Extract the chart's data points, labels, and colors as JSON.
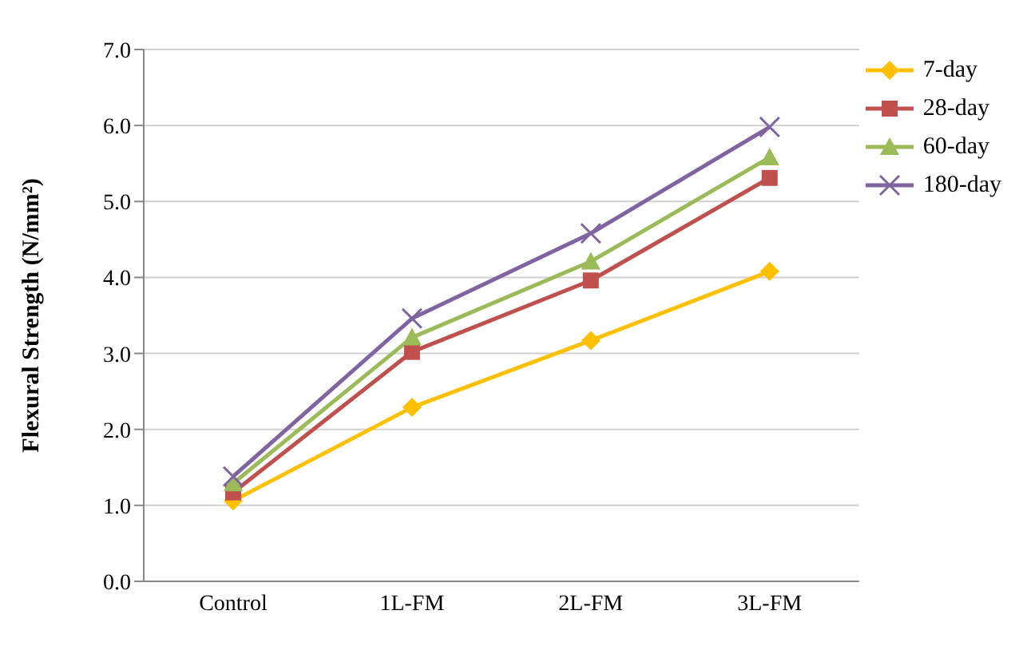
{
  "chart_data": {
    "type": "line",
    "ylabel": "Flexural Strength (N/mm²)",
    "categories": [
      "Control",
      "1L-FM",
      "2L-FM",
      "3L-FM"
    ],
    "series": [
      {
        "name": "7-day",
        "color": "#ffc000",
        "marker": "diamond",
        "values": [
          1.06,
          2.29,
          3.17,
          4.08
        ]
      },
      {
        "name": "28-day",
        "color": "#c0504d",
        "marker": "square",
        "values": [
          1.17,
          3.02,
          3.96,
          5.31
        ]
      },
      {
        "name": "60-day",
        "color": "#9bbb59",
        "marker": "triangle",
        "values": [
          1.29,
          3.21,
          4.21,
          5.58
        ]
      },
      {
        "name": "180-day",
        "color": "#8064a2",
        "marker": "cross",
        "values": [
          1.38,
          3.46,
          4.58,
          5.98
        ]
      }
    ],
    "ylim": [
      0,
      7
    ],
    "yticks": [
      {
        "value": 0,
        "label": "0.0"
      },
      {
        "value": 1,
        "label": "1.0"
      },
      {
        "value": 2,
        "label": "2.0"
      },
      {
        "value": 3,
        "label": "3.0"
      },
      {
        "value": 4,
        "label": "4.0"
      },
      {
        "value": 5,
        "label": "5.0"
      },
      {
        "value": 6,
        "label": "6.0"
      },
      {
        "value": 7,
        "label": "7.0"
      }
    ],
    "grid": "y",
    "legend": "right",
    "line_style": "solid"
  }
}
